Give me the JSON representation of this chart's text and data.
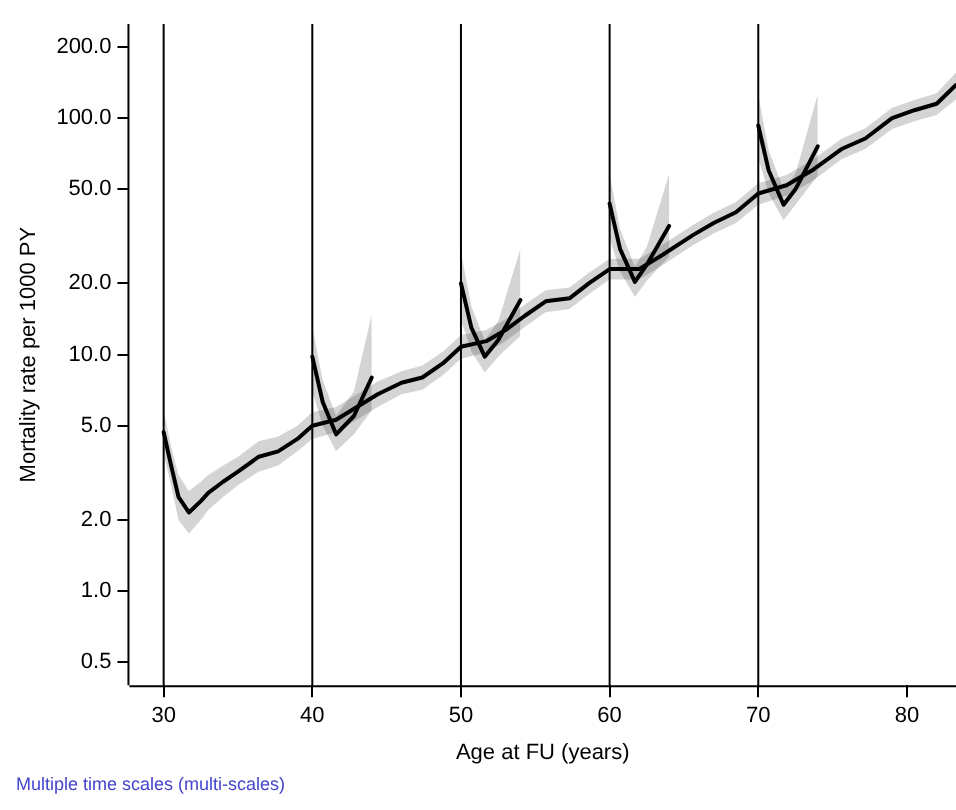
{
  "chart_data": {
    "type": "line",
    "xlabel": "Age at FU (years)",
    "ylabel": "Mortality rate per 1000 PY",
    "annotations": [
      "Multiple time scales (multi-scales)"
    ],
    "log": "y",
    "grid": false,
    "marker": "none",
    "line_style": "solid",
    "xlim": [
      27.7,
      83.3
    ],
    "xticks": [
      30,
      40,
      50,
      60,
      70,
      80
    ],
    "ylim": [
      0.4,
      250
    ],
    "yticks": [
      {
        "value": 0.5,
        "label": "0.5"
      },
      {
        "value": 1,
        "label": "1.0"
      },
      {
        "value": 2,
        "label": "2.0"
      },
      {
        "value": 5,
        "label": "5.0"
      },
      {
        "value": 10,
        "label": "10.0"
      },
      {
        "value": 20,
        "label": "20.0"
      },
      {
        "value": 50,
        "label": "50.0"
      },
      {
        "value": 100,
        "label": "100.0"
      },
      {
        "value": 200,
        "label": "200.0"
      }
    ],
    "ref_lines": [
      {
        "axis": "x",
        "value": 30,
        "color": "#000000"
      },
      {
        "axis": "x",
        "value": 40,
        "color": "#000000"
      },
      {
        "axis": "x",
        "value": 50,
        "color": "#000000"
      },
      {
        "axis": "x",
        "value": 60,
        "color": "#000000"
      },
      {
        "axis": "x",
        "value": 70,
        "color": "#000000"
      }
    ],
    "series": [
      {
        "color": "#000000",
        "x": [
          30,
          30.5,
          31,
          31.7,
          32.5,
          33,
          34,
          35,
          36.4,
          37.7,
          39,
          40,
          41.6,
          43,
          44.4,
          46,
          47.4,
          48.8,
          50,
          51.7,
          53,
          54.3,
          55.7,
          57.3,
          58.6,
          60,
          62,
          63.6,
          65.6,
          67,
          68.5,
          70,
          71.9,
          73.6,
          75.6,
          77.2,
          79,
          80.5,
          82,
          83.3
        ],
        "values": [
          4.7,
          3.4,
          2.5,
          2.15,
          2.4,
          2.6,
          2.9,
          3.2,
          3.7,
          3.9,
          4.4,
          5.0,
          5.3,
          6.0,
          6.8,
          7.6,
          8.0,
          9.2,
          10.8,
          11.4,
          12.7,
          14.6,
          16.8,
          17.3,
          20,
          23,
          23,
          26.5,
          32,
          36,
          40,
          48,
          52,
          60,
          74,
          82,
          100,
          108,
          115,
          138
        ],
        "lower": [
          3.8,
          2.8,
          2.0,
          1.75,
          2.0,
          2.2,
          2.5,
          2.8,
          3.2,
          3.4,
          3.9,
          4.4,
          4.7,
          5.3,
          6.0,
          6.8,
          7.1,
          8.2,
          9.6,
          10.2,
          11.4,
          13.1,
          15.1,
          15.6,
          18,
          20.8,
          20.8,
          24,
          29,
          32.5,
          36,
          43,
          47,
          54,
          67,
          74,
          90,
          97,
          103,
          120
        ],
        "upper": [
          5.8,
          4.1,
          3.1,
          2.65,
          2.9,
          3.1,
          3.4,
          3.7,
          4.3,
          4.5,
          5.0,
          5.7,
          6.0,
          6.8,
          7.7,
          8.5,
          9.0,
          10.3,
          12.1,
          12.7,
          14.1,
          16.3,
          18.7,
          19.2,
          22.2,
          25.4,
          25.4,
          29.3,
          35.3,
          39.8,
          44.2,
          53,
          57.5,
          66.3,
          81.7,
          90.6,
          110.5,
          119.3,
          127.5,
          156
        ]
      },
      {
        "color": "#000000",
        "x": [
          40,
          40.7,
          41.6,
          42.8,
          44
        ],
        "values": [
          9.8,
          6.3,
          4.6,
          5.5,
          8.0
        ],
        "lower": [
          7.0,
          5.0,
          3.9,
          4.6,
          5.8
        ],
        "upper": [
          13,
          7.8,
          5.5,
          7.0,
          14.8
        ]
      },
      {
        "color": "#000000",
        "x": [
          50,
          50.7,
          51.6,
          52.5,
          54
        ],
        "values": [
          20,
          13,
          9.8,
          11.5,
          17
        ],
        "lower": [
          14,
          10.3,
          8.4,
          9.8,
          12
        ],
        "upper": [
          27,
          16,
          11.5,
          13.8,
          28
        ]
      },
      {
        "color": "#000000",
        "x": [
          60,
          60.7,
          61.7,
          62.5,
          64
        ],
        "values": [
          43.5,
          28,
          20.3,
          24,
          35
        ],
        "lower": [
          31,
          22.5,
          17.5,
          20.5,
          26
        ],
        "upper": [
          58,
          34,
          23.5,
          28.5,
          58
        ]
      },
      {
        "color": "#000000",
        "x": [
          70,
          70.7,
          71.7,
          72.5,
          74
        ],
        "values": [
          93,
          60,
          43,
          50,
          76
        ],
        "lower": [
          68,
          48,
          37,
          43,
          57
        ],
        "upper": [
          125,
          73,
          50,
          58,
          126
        ]
      }
    ]
  }
}
